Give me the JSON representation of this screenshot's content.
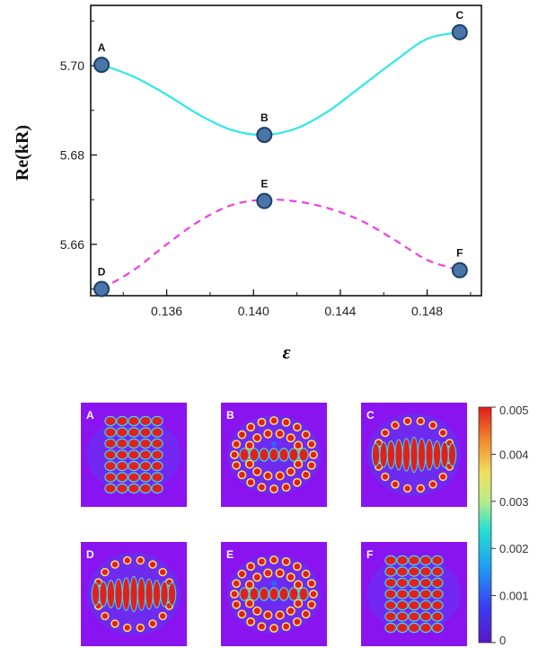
{
  "chart_data": [
    {
      "type": "line",
      "xlabel": "ε",
      "ylabel": "Re(kR)",
      "xlim": [
        0.1325,
        0.1505
      ],
      "ylim": [
        5.6485,
        5.7135
      ],
      "xticks": [
        "0.136",
        "0.140",
        "0.144",
        "0.148"
      ],
      "yticks": [
        "5.66",
        "5.68",
        "5.70"
      ],
      "grid": false,
      "series": [
        {
          "color": "#2ee8e8",
          "style": "solid",
          "x": [
            0.133,
            0.1345,
            0.136,
            0.1375,
            0.139,
            0.1405,
            0.142,
            0.1435,
            0.145,
            0.1465,
            0.148,
            0.1495
          ],
          "y": [
            5.7002,
            5.6975,
            5.6935,
            5.689,
            5.6856,
            5.6845,
            5.686,
            5.69,
            5.6955,
            5.701,
            5.706,
            5.7075
          ]
        },
        {
          "color": "#ee3fe0",
          "style": "dashed",
          "x": [
            0.133,
            0.1345,
            0.136,
            0.1375,
            0.139,
            0.1405,
            0.142,
            0.1435,
            0.145,
            0.1465,
            0.148,
            0.1495
          ],
          "y": [
            5.65,
            5.6543,
            5.66,
            5.6652,
            5.6688,
            5.67,
            5.6696,
            5.668,
            5.6652,
            5.661,
            5.6565,
            5.6542
          ]
        }
      ],
      "points": [
        {
          "label": "A",
          "x": 0.133,
          "y": 5.7002
        },
        {
          "label": "B",
          "x": 0.1405,
          "y": 5.6845
        },
        {
          "label": "C",
          "x": 0.1495,
          "y": 5.7075
        },
        {
          "label": "D",
          "x": 0.133,
          "y": 5.65
        },
        {
          "label": "E",
          "x": 0.1405,
          "y": 5.6697
        },
        {
          "label": "F",
          "x": 0.1495,
          "y": 5.6542
        }
      ],
      "marker_color": "#4a75a8"
    },
    {
      "type": "heatmap",
      "panels": [
        "A",
        "B",
        "C",
        "D",
        "E",
        "F"
      ],
      "colorbar": {
        "min": 0,
        "max": 0.005,
        "ticks": [
          "0",
          "0.001",
          "0.002",
          "0.003",
          "0.004",
          "0.005"
        ]
      }
    }
  ]
}
